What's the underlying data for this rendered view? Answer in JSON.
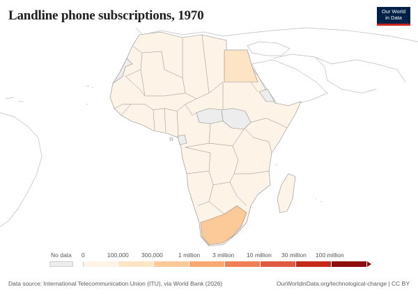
{
  "title": "Landline phone subscriptions, 1970",
  "logo": {
    "line1": "Our World",
    "line2": "in Data"
  },
  "legend": {
    "no_data_label": "No data",
    "tick_labels": [
      "0",
      "100,000",
      "300,000",
      "1 million",
      "3 million",
      "10 million",
      "30 million",
      "100 million"
    ],
    "bin_colors": [
      "#fdf3e7",
      "#fde4c4",
      "#fcc998",
      "#f9a872",
      "#f07f58",
      "#e05a42",
      "#c4291c",
      "#8e0b0b"
    ],
    "no_data_color": "#ededed"
  },
  "map_data": {
    "region": "Africa",
    "year": 1970,
    "countries": [
      {
        "name": "Egypt",
        "bin": "100,000–300,000",
        "color": "#fde4c4"
      },
      {
        "name": "South Africa",
        "bin": "300,000–1 million",
        "color": "#fcc998"
      },
      {
        "name": "Most other African countries",
        "bin": "0–100,000",
        "color": "#fdf3e7"
      },
      {
        "name": "South Sudan",
        "bin": "No data",
        "color": "#ededed"
      },
      {
        "name": "Western Sahara",
        "bin": "No data",
        "color": "#ededed"
      },
      {
        "name": "Eritrea",
        "bin": "No data",
        "color": "#ededed"
      },
      {
        "name": "Equatorial Guinea",
        "bin": "No data",
        "color": "#ededed"
      }
    ]
  },
  "footer": {
    "source": "Data source: International Telecommunication Union (ITU), via World Bank (2026)",
    "attribution": "OurWorldinData.org/technological-change | CC BY"
  }
}
